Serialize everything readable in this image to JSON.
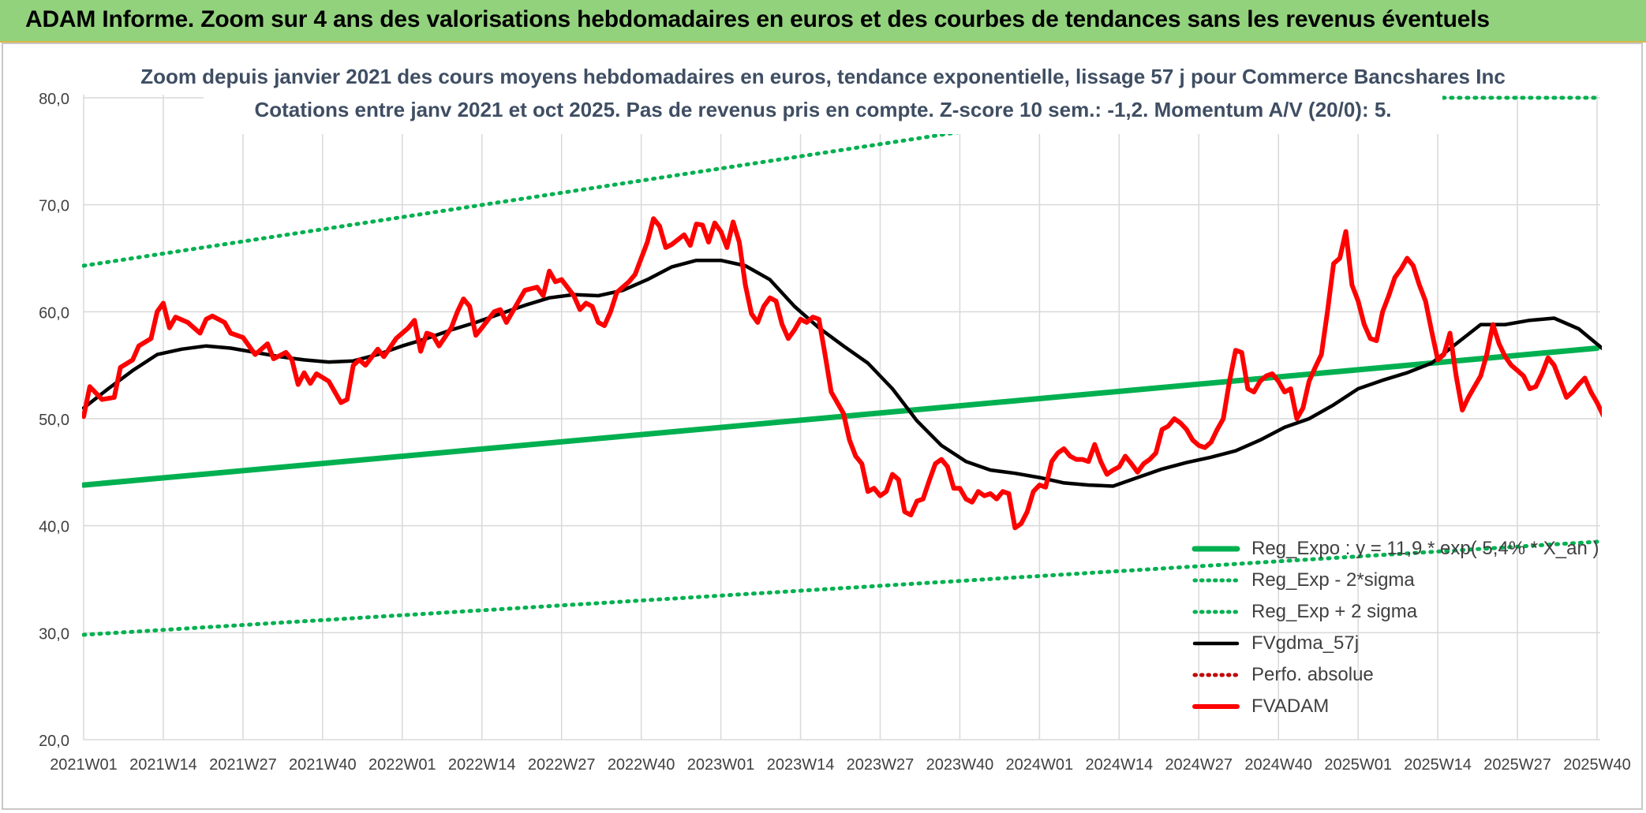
{
  "header": {
    "title": "ADAM Informe. Zoom sur 4 ans des valorisations hebdomadaires en euros et des courbes de tendances sans les revenus éventuels"
  },
  "chart_data": {
    "type": "line",
    "title": "Zoom depuis janvier 2021 des cours moyens hebdomadaires en euros, tendance exponentielle, lissage 57 j pour Commerce Bancshares Inc",
    "subtitle": "Cotations entre janv 2021 et oct 2025. Pas de revenus pris en compte. Z-score 10 sem.: -1,2. Momentum A/V (20/0): 5.",
    "xlabel": "",
    "ylabel": "",
    "ylim": [
      20,
      80
    ],
    "y_ticks": [
      "20,0",
      "30,0",
      "40,0",
      "50,0",
      "60,0",
      "70,0",
      "80,0"
    ],
    "x_ticks": [
      "2021W01",
      "2021W14",
      "2021W27",
      "2021W40",
      "2022W01",
      "2022W14",
      "2022W27",
      "2022W40",
      "2023W01",
      "2023W14",
      "2023W27",
      "2023W40",
      "2024W01",
      "2024W14",
      "2024W27",
      "2024W40",
      "2025W01",
      "2025W14",
      "2025W27",
      "2025W40"
    ],
    "grid": true,
    "legend_position": "bottom-right",
    "series": [
      {
        "name": "Reg_Expo : y = 11,9 * exp( 5,4% * X_an )",
        "color": "#00b050",
        "style": "solid",
        "points": [
          [
            0,
            43.8
          ],
          [
            247,
            56.6
          ]
        ]
      },
      {
        "name": "Reg_Exp - 2*sigma",
        "color": "#00b050",
        "style": "dotted",
        "points": [
          [
            0,
            29.8
          ],
          [
            247,
            38.5
          ]
        ]
      },
      {
        "name": "Reg_Exp + 2 sigma",
        "color": "#00b050",
        "style": "dotted",
        "points": [
          [
            0,
            64.3
          ],
          [
            175,
            79.6
          ],
          [
            190,
            80.8
          ],
          [
            222,
            80
          ],
          [
            247,
            80
          ]
        ]
      },
      {
        "name": "FVgdma_57j",
        "color": "#000000",
        "style": "solid",
        "points": [
          [
            0,
            51.0
          ],
          [
            4,
            52.8
          ],
          [
            8,
            54.5
          ],
          [
            12,
            56.0
          ],
          [
            16,
            56.5
          ],
          [
            20,
            56.8
          ],
          [
            24,
            56.6
          ],
          [
            28,
            56.2
          ],
          [
            32,
            55.8
          ],
          [
            36,
            55.5
          ],
          [
            40,
            55.3
          ],
          [
            44,
            55.4
          ],
          [
            48,
            56.0
          ],
          [
            52,
            56.8
          ],
          [
            56,
            57.5
          ],
          [
            60,
            58.3
          ],
          [
            64,
            59.0
          ],
          [
            68,
            59.8
          ],
          [
            72,
            60.6
          ],
          [
            76,
            61.3
          ],
          [
            80,
            61.6
          ],
          [
            84,
            61.5
          ],
          [
            88,
            62.0
          ],
          [
            92,
            63.0
          ],
          [
            96,
            64.2
          ],
          [
            100,
            64.8
          ],
          [
            104,
            64.8
          ],
          [
            108,
            64.3
          ],
          [
            112,
            63.0
          ],
          [
            116,
            60.5
          ],
          [
            120,
            58.5
          ],
          [
            124,
            56.8
          ],
          [
            128,
            55.2
          ],
          [
            132,
            52.8
          ],
          [
            136,
            49.8
          ],
          [
            140,
            47.5
          ],
          [
            144,
            46.0
          ],
          [
            148,
            45.2
          ],
          [
            152,
            44.9
          ],
          [
            156,
            44.5
          ],
          [
            160,
            44.0
          ],
          [
            164,
            43.8
          ],
          [
            168,
            43.7
          ],
          [
            172,
            44.5
          ],
          [
            176,
            45.3
          ],
          [
            180,
            45.9
          ],
          [
            184,
            46.4
          ],
          [
            188,
            47.0
          ],
          [
            192,
            48.0
          ],
          [
            196,
            49.2
          ],
          [
            200,
            50.0
          ],
          [
            204,
            51.3
          ],
          [
            208,
            52.8
          ],
          [
            212,
            53.6
          ],
          [
            216,
            54.3
          ],
          [
            220,
            55.2
          ],
          [
            224,
            57.0
          ],
          [
            228,
            58.8
          ],
          [
            232,
            58.8
          ],
          [
            236,
            59.2
          ],
          [
            240,
            59.4
          ],
          [
            244,
            58.4
          ],
          [
            248,
            56.5
          ],
          [
            252,
            55.7
          ],
          [
            256,
            55.3
          ],
          [
            260,
            54.5
          ],
          [
            264,
            53.8
          ],
          [
            268,
            53.2
          ],
          [
            272,
            52.7
          ],
          [
            276,
            52.2
          ],
          [
            280,
            51.6
          ]
        ]
      },
      {
        "name": "Perfo. absolue",
        "color": "#c00000",
        "style": "dotted",
        "points": []
      },
      {
        "name": "FVADAM",
        "color": "#ff0000",
        "style": "solid",
        "points": [
          [
            0,
            50.2
          ],
          [
            1,
            53.0
          ],
          [
            3,
            51.8
          ],
          [
            5,
            52.0
          ],
          [
            6,
            54.8
          ],
          [
            8,
            55.5
          ],
          [
            9,
            56.8
          ],
          [
            11,
            57.5
          ],
          [
            12,
            60.0
          ],
          [
            13,
            60.8
          ],
          [
            14,
            58.5
          ],
          [
            15,
            59.5
          ],
          [
            17,
            59.0
          ],
          [
            19,
            58.0
          ],
          [
            20,
            59.3
          ],
          [
            21,
            59.6
          ],
          [
            23,
            59.0
          ],
          [
            24,
            58.0
          ],
          [
            26,
            57.6
          ],
          [
            28,
            56.0
          ],
          [
            30,
            57.0
          ],
          [
            31,
            55.6
          ],
          [
            33,
            56.2
          ],
          [
            34,
            55.5
          ],
          [
            35,
            53.2
          ],
          [
            36,
            54.3
          ],
          [
            37,
            53.3
          ],
          [
            38,
            54.2
          ],
          [
            40,
            53.5
          ],
          [
            42,
            51.5
          ],
          [
            43,
            51.8
          ],
          [
            44,
            55.0
          ],
          [
            45,
            55.5
          ],
          [
            46,
            55.0
          ],
          [
            48,
            56.5
          ],
          [
            49,
            55.8
          ],
          [
            51,
            57.5
          ],
          [
            53,
            58.5
          ],
          [
            54,
            59.2
          ],
          [
            55,
            56.3
          ],
          [
            56,
            58.0
          ],
          [
            57,
            57.8
          ],
          [
            58,
            56.8
          ],
          [
            60,
            58.5
          ],
          [
            61,
            60.0
          ],
          [
            62,
            61.2
          ],
          [
            63,
            60.5
          ],
          [
            64,
            57.8
          ],
          [
            65,
            58.5
          ],
          [
            67,
            60.0
          ],
          [
            68,
            60.2
          ],
          [
            69,
            59.0
          ],
          [
            71,
            61.0
          ],
          [
            72,
            62.0
          ],
          [
            74,
            62.3
          ],
          [
            75,
            61.5
          ],
          [
            76,
            63.8
          ],
          [
            77,
            62.8
          ],
          [
            78,
            63.0
          ],
          [
            80,
            61.5
          ],
          [
            81,
            60.2
          ],
          [
            82,
            60.8
          ],
          [
            83,
            60.5
          ],
          [
            84,
            59.0
          ],
          [
            85,
            58.7
          ],
          [
            86,
            60.0
          ],
          [
            87,
            61.8
          ],
          [
            89,
            62.8
          ],
          [
            90,
            63.5
          ],
          [
            92,
            66.5
          ],
          [
            93,
            68.7
          ],
          [
            94,
            68.0
          ],
          [
            95,
            66.0
          ],
          [
            96,
            66.3
          ],
          [
            98,
            67.2
          ],
          [
            99,
            66.2
          ],
          [
            100,
            68.2
          ],
          [
            101,
            68.1
          ],
          [
            102,
            66.5
          ],
          [
            103,
            68.3
          ],
          [
            104,
            67.5
          ],
          [
            105,
            66.0
          ],
          [
            106,
            68.4
          ],
          [
            107,
            66.5
          ],
          [
            108,
            62.5
          ],
          [
            109,
            59.8
          ],
          [
            110,
            59.0
          ],
          [
            111,
            60.5
          ],
          [
            112,
            61.3
          ],
          [
            113,
            61.0
          ],
          [
            114,
            58.8
          ],
          [
            115,
            57.5
          ],
          [
            116,
            58.3
          ],
          [
            117,
            59.3
          ],
          [
            118,
            59.0
          ],
          [
            119,
            59.5
          ],
          [
            120,
            59.3
          ],
          [
            121,
            56.0
          ],
          [
            122,
            52.5
          ],
          [
            123,
            51.5
          ],
          [
            124,
            50.5
          ],
          [
            125,
            48.0
          ],
          [
            126,
            46.5
          ],
          [
            127,
            45.8
          ],
          [
            128,
            43.2
          ],
          [
            129,
            43.5
          ],
          [
            130,
            42.8
          ],
          [
            131,
            43.2
          ],
          [
            132,
            44.8
          ],
          [
            133,
            44.3
          ],
          [
            134,
            41.3
          ],
          [
            135,
            41.0
          ],
          [
            136,
            42.3
          ],
          [
            137,
            42.5
          ],
          [
            138,
            44.2
          ],
          [
            139,
            45.8
          ],
          [
            140,
            46.2
          ],
          [
            141,
            45.5
          ],
          [
            142,
            43.5
          ],
          [
            143,
            43.5
          ],
          [
            144,
            42.5
          ],
          [
            145,
            42.2
          ],
          [
            146,
            43.2
          ],
          [
            147,
            42.8
          ],
          [
            148,
            43.0
          ],
          [
            149,
            42.5
          ],
          [
            150,
            43.2
          ],
          [
            151,
            43.0
          ],
          [
            152,
            39.8
          ],
          [
            153,
            40.2
          ],
          [
            154,
            41.3
          ],
          [
            155,
            43.2
          ],
          [
            156,
            43.8
          ],
          [
            157,
            43.6
          ],
          [
            158,
            46.0
          ],
          [
            159,
            46.8
          ],
          [
            160,
            47.2
          ],
          [
            161,
            46.5
          ],
          [
            162,
            46.2
          ],
          [
            163,
            46.2
          ],
          [
            164,
            46.0
          ],
          [
            165,
            47.6
          ],
          [
            166,
            46.0
          ],
          [
            167,
            44.8
          ],
          [
            168,
            45.2
          ],
          [
            169,
            45.5
          ],
          [
            170,
            46.5
          ],
          [
            171,
            45.8
          ],
          [
            172,
            45.0
          ],
          [
            173,
            45.8
          ],
          [
            174,
            46.2
          ],
          [
            175,
            46.8
          ],
          [
            176,
            49.0
          ],
          [
            177,
            49.3
          ],
          [
            178,
            50.0
          ],
          [
            179,
            49.6
          ],
          [
            180,
            49.0
          ],
          [
            181,
            48.0
          ],
          [
            182,
            47.5
          ],
          [
            183,
            47.3
          ],
          [
            184,
            47.8
          ],
          [
            185,
            49.0
          ],
          [
            186,
            50.0
          ],
          [
            187,
            53.5
          ],
          [
            188,
            56.4
          ],
          [
            189,
            56.2
          ],
          [
            190,
            52.8
          ],
          [
            191,
            52.5
          ],
          [
            192,
            53.5
          ],
          [
            193,
            54.0
          ],
          [
            194,
            54.2
          ],
          [
            195,
            53.5
          ],
          [
            196,
            52.5
          ],
          [
            197,
            52.8
          ],
          [
            198,
            50.0
          ],
          [
            199,
            51.0
          ],
          [
            200,
            53.5
          ],
          [
            201,
            54.8
          ],
          [
            202,
            56.0
          ],
          [
            203,
            60.0
          ],
          [
            204,
            64.5
          ],
          [
            205,
            65.0
          ],
          [
            206,
            67.5
          ],
          [
            207,
            62.5
          ],
          [
            208,
            61.0
          ],
          [
            209,
            58.8
          ],
          [
            210,
            57.5
          ],
          [
            211,
            57.3
          ],
          [
            212,
            60.0
          ],
          [
            213,
            61.5
          ],
          [
            214,
            63.2
          ],
          [
            215,
            64.0
          ],
          [
            216,
            65.0
          ],
          [
            217,
            64.3
          ],
          [
            218,
            62.5
          ],
          [
            219,
            61.0
          ],
          [
            220,
            58.2
          ],
          [
            221,
            55.5
          ],
          [
            222,
            56.0
          ],
          [
            223,
            58.0
          ],
          [
            224,
            54.0
          ],
          [
            225,
            50.8
          ],
          [
            226,
            52.0
          ],
          [
            227,
            53.0
          ],
          [
            228,
            54.0
          ],
          [
            229,
            56.0
          ],
          [
            230,
            58.8
          ],
          [
            231,
            57.0
          ],
          [
            232,
            55.8
          ],
          [
            233,
            55.0
          ],
          [
            234,
            54.5
          ],
          [
            235,
            54.0
          ],
          [
            236,
            52.8
          ],
          [
            237,
            53.0
          ],
          [
            238,
            54.2
          ],
          [
            239,
            55.7
          ],
          [
            240,
            55.0
          ],
          [
            241,
            53.5
          ],
          [
            242,
            52.0
          ],
          [
            243,
            52.5
          ],
          [
            244,
            53.2
          ],
          [
            245,
            53.8
          ],
          [
            246,
            52.5
          ],
          [
            247,
            51.5
          ],
          [
            248,
            50.3
          ],
          [
            249,
            50.4
          ],
          [
            250,
            50.6
          ]
        ]
      }
    ]
  }
}
